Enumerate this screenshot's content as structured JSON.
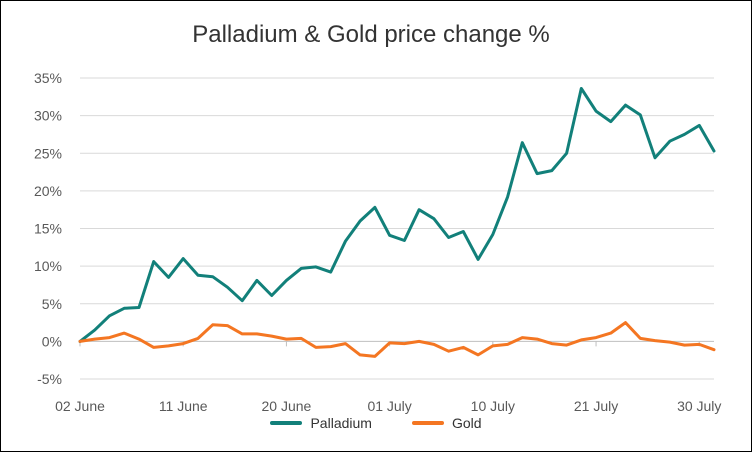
{
  "chart_data": {
    "type": "line",
    "title": "Palladium & Gold price change %",
    "xlabel": "",
    "ylabel": "",
    "ylim": [
      -5,
      35
    ],
    "yticks": [
      "-5%",
      "0%",
      "5%",
      "10%",
      "15%",
      "20%",
      "25%",
      "30%",
      "35%"
    ],
    "xtick_labels": [
      "02 June",
      "11 June",
      "20 June",
      "01 July",
      "10 July",
      "21 July",
      "30 July"
    ],
    "grid": true,
    "legend_position": "bottom",
    "series": [
      {
        "name": "Palladium",
        "color": "#12807a",
        "values": [
          0.0,
          1.5,
          3.4,
          4.4,
          4.5,
          10.6,
          8.5,
          11.0,
          8.8,
          8.6,
          7.2,
          5.4,
          8.1,
          6.1,
          8.1,
          9.7,
          9.9,
          9.2,
          13.3,
          16.0,
          17.8,
          14.1,
          13.4,
          17.5,
          16.3,
          13.8,
          14.6,
          10.9,
          14.2,
          19.2,
          26.4,
          22.3,
          22.7,
          25.0,
          33.6,
          30.6,
          29.2,
          31.4,
          30.1,
          24.4,
          26.6,
          27.5,
          28.7,
          25.3
        ]
      },
      {
        "name": "Gold",
        "color": "#f47622",
        "values": [
          0.0,
          0.3,
          0.5,
          1.1,
          0.3,
          -0.8,
          -0.6,
          -0.3,
          0.4,
          2.2,
          2.1,
          1.0,
          1.0,
          0.7,
          0.3,
          0.4,
          -0.8,
          -0.7,
          -0.3,
          -1.8,
          -2.0,
          -0.2,
          -0.3,
          0.0,
          -0.4,
          -1.3,
          -0.8,
          -1.8,
          -0.6,
          -0.4,
          0.5,
          0.3,
          -0.3,
          -0.5,
          0.2,
          0.5,
          1.1,
          2.5,
          0.4,
          0.1,
          -0.1,
          -0.5,
          -0.4,
          -1.1
        ]
      }
    ]
  }
}
